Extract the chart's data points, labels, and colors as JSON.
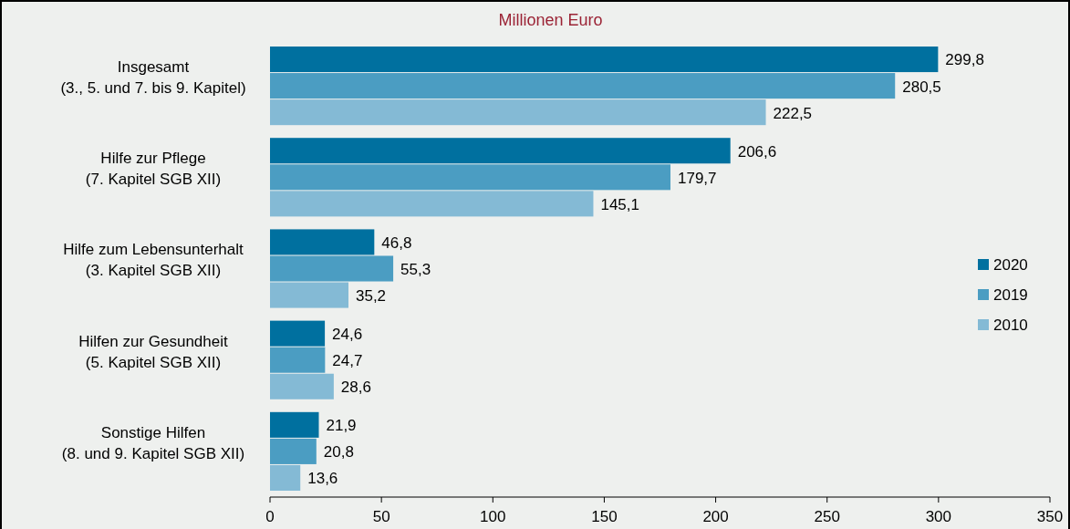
{
  "chart_data": {
    "type": "bar",
    "orientation": "horizontal",
    "title": "Millionen Euro",
    "categories": [
      "Insgesamt\n(3., 5. und 7. bis 9. Kapitel)",
      "Hilfe zur Pflege\n(7. Kapitel SGB XII)",
      "Hilfe zum Lebensunterhalt\n(3. Kapitel SGB XII)",
      "Hilfen zur Gesundheit\n(5. Kapitel SGB XII)",
      "Sonstige Hilfen\n(8. und 9. Kapitel SGB XII)"
    ],
    "series": [
      {
        "name": "2020",
        "color": "#00709f",
        "values": [
          299.8,
          206.6,
          46.8,
          24.6,
          21.9
        ],
        "value_labels": [
          "299,8",
          "206,6",
          "46,8",
          "24,6",
          "21,9"
        ]
      },
      {
        "name": "2019",
        "color": "#4b9dc2",
        "values": [
          280.5,
          179.7,
          55.3,
          24.7,
          20.8
        ],
        "value_labels": [
          "280,5",
          "179,7",
          "55,3",
          "24,7",
          "20,8"
        ]
      },
      {
        "name": "2010",
        "color": "#84bad5",
        "values": [
          222.5,
          145.1,
          35.2,
          28.6,
          13.6
        ],
        "value_labels": [
          "222,5",
          "145,1",
          "35,2",
          "28,6",
          "13,6"
        ]
      }
    ],
    "xlim": [
      0,
      350
    ],
    "xticks": [
      0,
      50,
      100,
      150,
      200,
      250,
      300,
      350
    ],
    "legend": "right",
    "grid": false
  }
}
